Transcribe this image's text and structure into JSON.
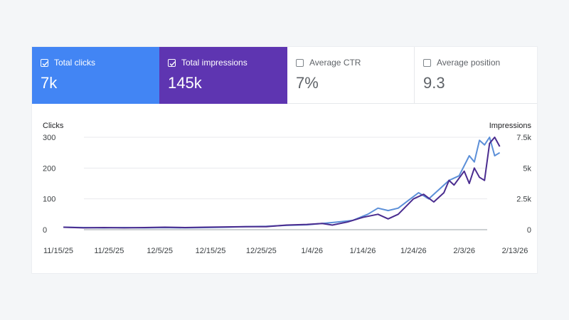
{
  "metrics": [
    {
      "label": "Total clicks",
      "value": "7k",
      "checked": true,
      "color": "#4285f4"
    },
    {
      "label": "Total impressions",
      "value": "145k",
      "checked": true,
      "color": "#5e35b1"
    },
    {
      "label": "Average CTR",
      "value": "7%",
      "checked": false
    },
    {
      "label": "Average position",
      "value": "9.3",
      "checked": false
    }
  ],
  "chart_data": {
    "type": "line",
    "ylabel_left": "Clicks",
    "ylabel_right": "Impressions",
    "left_ticks": [
      "300",
      "200",
      "100",
      "0"
    ],
    "right_ticks": [
      "7.5k",
      "5k",
      "2.5k",
      "0"
    ],
    "left_ylim": [
      0,
      300
    ],
    "right_ylim": [
      0,
      7500
    ],
    "x_ticks": [
      "11/15/25",
      "11/25/25",
      "12/5/25",
      "12/15/25",
      "12/25/25",
      "1/4/26",
      "1/14/26",
      "1/24/26",
      "2/3/26",
      "2/13/26"
    ],
    "grid": true,
    "series": [
      {
        "axis": "left",
        "color": "#5b8fd8",
        "points": [
          [
            "11/16/25",
            8
          ],
          [
            "11/20/25",
            7
          ],
          [
            "11/24/25",
            6
          ],
          [
            "11/28/25",
            7
          ],
          [
            "12/2/25",
            6
          ],
          [
            "12/6/25",
            7
          ],
          [
            "12/10/25",
            6
          ],
          [
            "12/14/25",
            7
          ],
          [
            "12/18/25",
            8
          ],
          [
            "12/22/25",
            10
          ],
          [
            "12/26/25",
            11
          ],
          [
            "12/30/25",
            14
          ],
          [
            "1/3/26",
            16
          ],
          [
            "1/6/26",
            20
          ],
          [
            "1/9/26",
            25
          ],
          [
            "1/12/26",
            30
          ],
          [
            "1/15/26",
            50
          ],
          [
            "1/17/26",
            70
          ],
          [
            "1/19/26",
            62
          ],
          [
            "1/21/26",
            70
          ],
          [
            "1/23/26",
            95
          ],
          [
            "1/25/26",
            120
          ],
          [
            "1/27/26",
            100
          ],
          [
            "1/29/26",
            130
          ],
          [
            "1/31/26",
            160
          ],
          [
            "2/2/26",
            175
          ],
          [
            "2/4/26",
            240
          ],
          [
            "2/5/26",
            220
          ],
          [
            "2/6/26",
            290
          ],
          [
            "2/7/26",
            275
          ],
          [
            "2/8/26",
            300
          ],
          [
            "2/9/26",
            240
          ],
          [
            "2/10/26",
            250
          ]
        ]
      },
      {
        "axis": "right",
        "color": "#4a2c8f",
        "points": [
          [
            "11/16/25",
            200
          ],
          [
            "11/20/25",
            150
          ],
          [
            "11/24/25",
            175
          ],
          [
            "11/28/25",
            150
          ],
          [
            "12/2/25",
            175
          ],
          [
            "12/6/25",
            200
          ],
          [
            "12/10/25",
            175
          ],
          [
            "12/14/25",
            200
          ],
          [
            "12/18/25",
            225
          ],
          [
            "12/22/25",
            250
          ],
          [
            "12/26/25",
            250
          ],
          [
            "12/30/25",
            375
          ],
          [
            "1/3/26",
            425
          ],
          [
            "1/6/26",
            500
          ],
          [
            "1/8/26",
            375
          ],
          [
            "1/11/26",
            625
          ],
          [
            "1/14/26",
            1000
          ],
          [
            "1/17/26",
            1250
          ],
          [
            "1/19/26",
            875
          ],
          [
            "1/21/26",
            1250
          ],
          [
            "1/24/26",
            2500
          ],
          [
            "1/26/26",
            2875
          ],
          [
            "1/28/26",
            2250
          ],
          [
            "1/30/26",
            3000
          ],
          [
            "1/31/26",
            4000
          ],
          [
            "2/1/26",
            3625
          ],
          [
            "2/3/26",
            4750
          ],
          [
            "2/4/26",
            3750
          ],
          [
            "2/5/26",
            5000
          ],
          [
            "2/6/26",
            4250
          ],
          [
            "2/7/26",
            4000
          ],
          [
            "2/8/26",
            7000
          ],
          [
            "2/9/26",
            7500
          ],
          [
            "2/10/26",
            6750
          ]
        ]
      }
    ]
  }
}
